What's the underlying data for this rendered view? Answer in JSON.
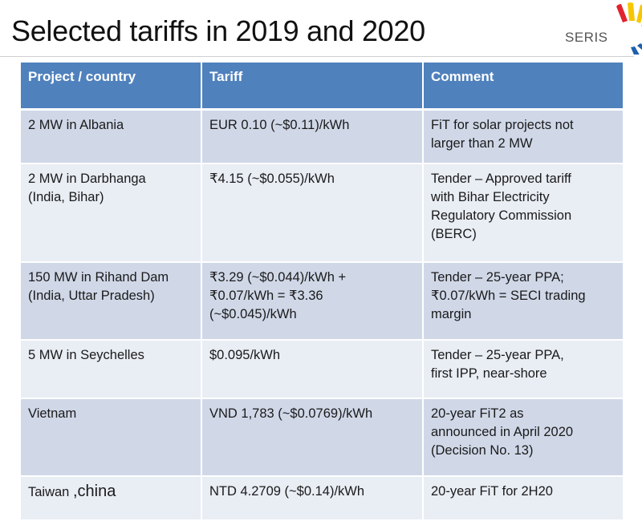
{
  "slide": {
    "title": "Selected tariffs in 2019 and 2020",
    "logo_text": "SERIS",
    "colors": {
      "header": "#4f81bd",
      "row_odd": "#d0d8e8",
      "row_even": "#e9edf4"
    }
  },
  "table": {
    "headers": [
      "Project / country",
      "Tariff",
      "Comment"
    ],
    "rows": [
      {
        "project": [
          "2 MW in Albania"
        ],
        "tariff": [
          "EUR 0.10 (~$0.11)/kWh"
        ],
        "comment": [
          "FiT for solar projects not",
          "larger than 2 MW"
        ]
      },
      {
        "project": [
          "2 MW in Darbhanga",
          "(India, Bihar)"
        ],
        "tariff": [
          "₹4.15 (~$0.055)/kWh"
        ],
        "comment": [
          "Tender – Approved tariff",
          "with Bihar Electricity",
          "Regulatory Commission",
          "(BERC)"
        ]
      },
      {
        "project": [
          "150 MW in Rihand Dam",
          "(India, Uttar Pradesh)"
        ],
        "tariff": [
          "₹3.29 (~$0.044)/kWh +",
          "₹0.07/kWh = ₹3.36",
          "(~$0.045)/kWh"
        ],
        "comment": [
          "Tender – 25-year PPA;",
          "₹0.07/kWh = SECI trading",
          "margin"
        ]
      },
      {
        "project": [
          "5 MW in Seychelles"
        ],
        "tariff": [
          "$0.095/kWh"
        ],
        "comment": [
          "Tender – 25-year PPA,",
          "first IPP, near-shore"
        ]
      },
      {
        "project": [
          "Vietnam"
        ],
        "tariff": [
          "VND 1,783 (~$0.0769)/kWh"
        ],
        "comment": [
          "20-year FiT2 as",
          "announced in April 2020",
          "(Decision No. 13)"
        ]
      },
      {
        "project": [
          "Taiwan",
          ",china"
        ],
        "tariff": [
          "NTD 4.2709 (~$0.14)/kWh"
        ],
        "comment": [
          "20-year FiT for 2H20"
        ]
      }
    ]
  }
}
